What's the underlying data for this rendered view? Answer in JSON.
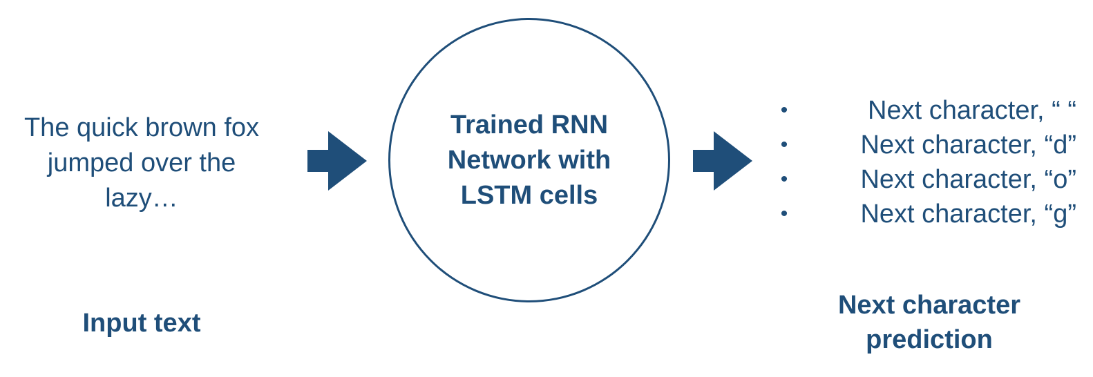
{
  "colors": {
    "primary": "#1f4e79",
    "background": "#ffffff"
  },
  "input": {
    "lines": [
      "The quick brown fox",
      "jumped over the",
      "lazy…"
    ],
    "caption": "Input text"
  },
  "model": {
    "lines": [
      "Trained RNN",
      "Network with",
      "LSTM cells"
    ]
  },
  "output": {
    "bullet": "•",
    "items": [
      "Next character, “ “",
      "Next character, “d”",
      "Next character, “o”",
      "Next character, “g”"
    ],
    "caption_lines": [
      "Next character",
      "prediction"
    ]
  },
  "icons": {
    "arrow_1": "right-arrow-icon",
    "arrow_2": "right-arrow-icon"
  }
}
